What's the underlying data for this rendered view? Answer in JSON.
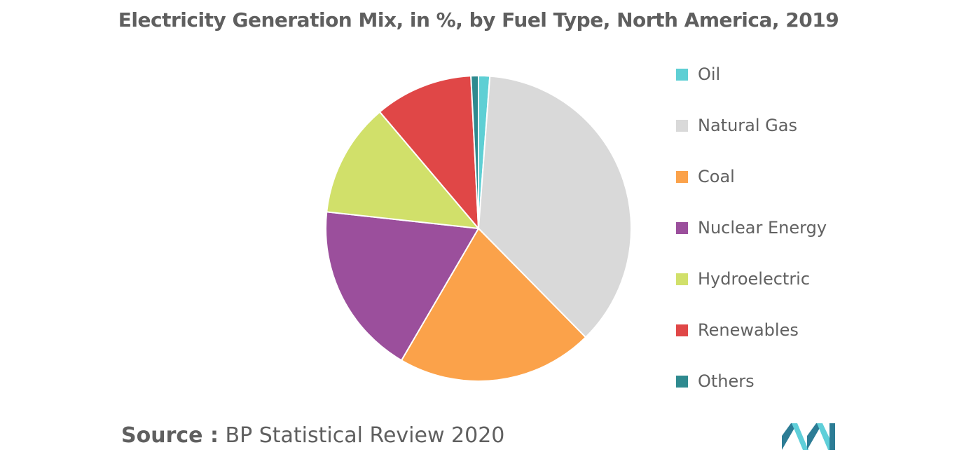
{
  "title": "Electricity Generation Mix, in %, by Fuel Type, North America, 2019",
  "source": {
    "label": "Source :",
    "text": "BP Statistical Review 2020"
  },
  "colors": {
    "oil": "#5ecfd4",
    "natural_gas": "#d9d9d9",
    "coal": "#fba24a",
    "nuclear": "#9b4f9c",
    "hydro": "#d1e06a",
    "renewables": "#e04747",
    "others": "#2f8a8f",
    "logo_dark": "#2c7c95",
    "logo_light": "#5fcfd9"
  },
  "chart_data": {
    "type": "pie",
    "title": "Electricity Generation Mix, in %, by Fuel Type, North America, 2019",
    "legend_position": "right",
    "start_angle_deg": 0,
    "direction": "clockwise",
    "series": [
      {
        "name": "Oil",
        "value": 1.2,
        "color": "#5ecfd4"
      },
      {
        "name": "Natural Gas",
        "value": 36.8,
        "color": "#d9d9d9"
      },
      {
        "name": "Coal",
        "value": 21.0,
        "color": "#fba24a"
      },
      {
        "name": "Nuclear Energy",
        "value": 18.5,
        "color": "#9b4f9c"
      },
      {
        "name": "Hydroelectric",
        "value": 12.2,
        "color": "#d1e06a"
      },
      {
        "name": "Renewables",
        "value": 10.5,
        "color": "#e04747"
      },
      {
        "name": "Others",
        "value": 0.8,
        "color": "#2f8a8f"
      }
    ]
  },
  "logo": {
    "name": "brand-logo"
  }
}
